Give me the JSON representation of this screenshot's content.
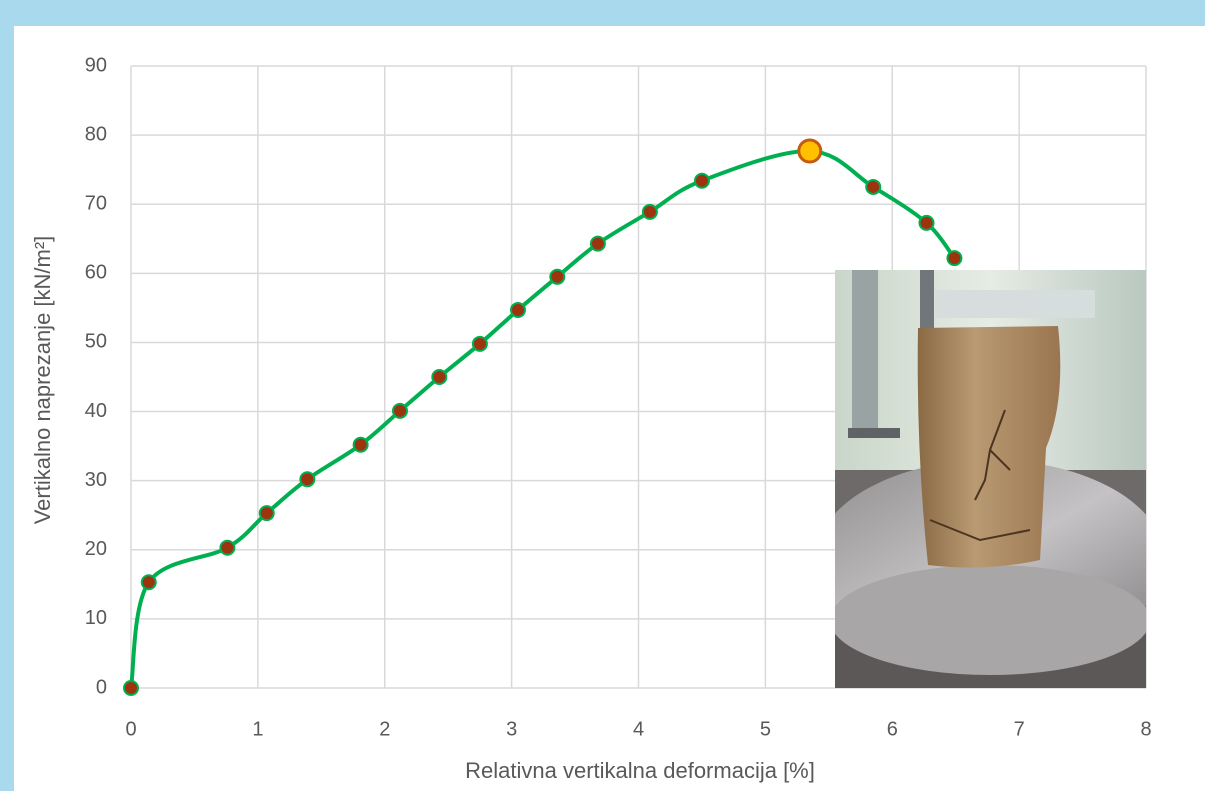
{
  "chart_data": {
    "type": "line",
    "x_label": "Relativna vertikalna deformacija [%]",
    "y_label": "Vertikalno naprezanje [kN/m²]",
    "x": [
      0,
      0.14,
      0.76,
      1.07,
      1.39,
      1.81,
      2.12,
      2.43,
      2.75,
      3.05,
      3.36,
      3.68,
      4.09,
      4.5,
      5.35,
      5.85,
      6.27,
      6.49
    ],
    "series": [
      {
        "color": "#00b050",
        "marker_color": "#9c3410",
        "values": [
          0,
          15.3,
          20.3,
          25.3,
          30.2,
          35.2,
          40.1,
          45.0,
          49.8,
          54.7,
          59.5,
          64.3,
          68.9,
          73.4,
          77.7,
          72.5,
          67.3,
          62.2
        ]
      }
    ],
    "highlight_index": 14,
    "highlight_color": "#ffc000",
    "xlim": [
      0,
      8
    ],
    "xticks": [
      0,
      1,
      2,
      3,
      4,
      5,
      6,
      7,
      8
    ],
    "ylim": [
      0,
      90
    ],
    "yticks": [
      0,
      10,
      20,
      30,
      40,
      50,
      60,
      70,
      80,
      90
    ],
    "grid": true
  }
}
